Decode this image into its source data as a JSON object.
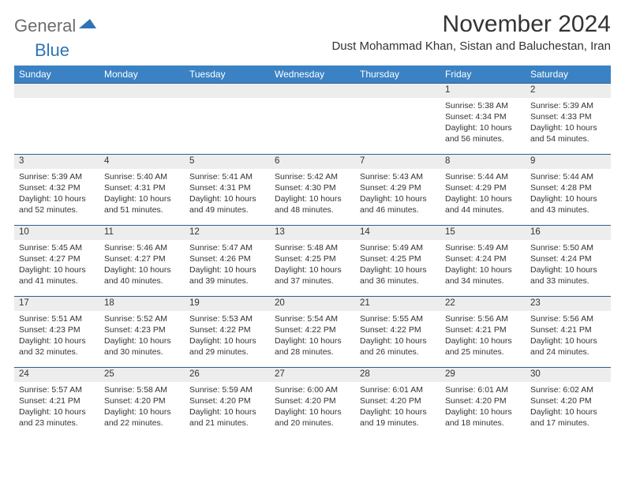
{
  "brand": {
    "part1": "General",
    "part2": "Blue"
  },
  "title": "November 2024",
  "location": "Dust Mohammad Khan, Sistan and Baluchestan, Iran",
  "colors": {
    "header_bg": "#3b82c4",
    "daynum_bg": "#ededed",
    "row_border": "#2f5f8f",
    "brand_gray": "#6d6d6d",
    "brand_blue": "#2f74b5",
    "text": "#333333",
    "page_bg": "#ffffff"
  },
  "weekdays": [
    "Sunday",
    "Monday",
    "Tuesday",
    "Wednesday",
    "Thursday",
    "Friday",
    "Saturday"
  ],
  "weeks": [
    [
      null,
      null,
      null,
      null,
      null,
      {
        "n": "1",
        "sr": "5:38 AM",
        "ss": "4:34 PM",
        "dl": "10 hours and 56 minutes."
      },
      {
        "n": "2",
        "sr": "5:39 AM",
        "ss": "4:33 PM",
        "dl": "10 hours and 54 minutes."
      }
    ],
    [
      {
        "n": "3",
        "sr": "5:39 AM",
        "ss": "4:32 PM",
        "dl": "10 hours and 52 minutes."
      },
      {
        "n": "4",
        "sr": "5:40 AM",
        "ss": "4:31 PM",
        "dl": "10 hours and 51 minutes."
      },
      {
        "n": "5",
        "sr": "5:41 AM",
        "ss": "4:31 PM",
        "dl": "10 hours and 49 minutes."
      },
      {
        "n": "6",
        "sr": "5:42 AM",
        "ss": "4:30 PM",
        "dl": "10 hours and 48 minutes."
      },
      {
        "n": "7",
        "sr": "5:43 AM",
        "ss": "4:29 PM",
        "dl": "10 hours and 46 minutes."
      },
      {
        "n": "8",
        "sr": "5:44 AM",
        "ss": "4:29 PM",
        "dl": "10 hours and 44 minutes."
      },
      {
        "n": "9",
        "sr": "5:44 AM",
        "ss": "4:28 PM",
        "dl": "10 hours and 43 minutes."
      }
    ],
    [
      {
        "n": "10",
        "sr": "5:45 AM",
        "ss": "4:27 PM",
        "dl": "10 hours and 41 minutes."
      },
      {
        "n": "11",
        "sr": "5:46 AM",
        "ss": "4:27 PM",
        "dl": "10 hours and 40 minutes."
      },
      {
        "n": "12",
        "sr": "5:47 AM",
        "ss": "4:26 PM",
        "dl": "10 hours and 39 minutes."
      },
      {
        "n": "13",
        "sr": "5:48 AM",
        "ss": "4:25 PM",
        "dl": "10 hours and 37 minutes."
      },
      {
        "n": "14",
        "sr": "5:49 AM",
        "ss": "4:25 PM",
        "dl": "10 hours and 36 minutes."
      },
      {
        "n": "15",
        "sr": "5:49 AM",
        "ss": "4:24 PM",
        "dl": "10 hours and 34 minutes."
      },
      {
        "n": "16",
        "sr": "5:50 AM",
        "ss": "4:24 PM",
        "dl": "10 hours and 33 minutes."
      }
    ],
    [
      {
        "n": "17",
        "sr": "5:51 AM",
        "ss": "4:23 PM",
        "dl": "10 hours and 32 minutes."
      },
      {
        "n": "18",
        "sr": "5:52 AM",
        "ss": "4:23 PM",
        "dl": "10 hours and 30 minutes."
      },
      {
        "n": "19",
        "sr": "5:53 AM",
        "ss": "4:22 PM",
        "dl": "10 hours and 29 minutes."
      },
      {
        "n": "20",
        "sr": "5:54 AM",
        "ss": "4:22 PM",
        "dl": "10 hours and 28 minutes."
      },
      {
        "n": "21",
        "sr": "5:55 AM",
        "ss": "4:22 PM",
        "dl": "10 hours and 26 minutes."
      },
      {
        "n": "22",
        "sr": "5:56 AM",
        "ss": "4:21 PM",
        "dl": "10 hours and 25 minutes."
      },
      {
        "n": "23",
        "sr": "5:56 AM",
        "ss": "4:21 PM",
        "dl": "10 hours and 24 minutes."
      }
    ],
    [
      {
        "n": "24",
        "sr": "5:57 AM",
        "ss": "4:21 PM",
        "dl": "10 hours and 23 minutes."
      },
      {
        "n": "25",
        "sr": "5:58 AM",
        "ss": "4:20 PM",
        "dl": "10 hours and 22 minutes."
      },
      {
        "n": "26",
        "sr": "5:59 AM",
        "ss": "4:20 PM",
        "dl": "10 hours and 21 minutes."
      },
      {
        "n": "27",
        "sr": "6:00 AM",
        "ss": "4:20 PM",
        "dl": "10 hours and 20 minutes."
      },
      {
        "n": "28",
        "sr": "6:01 AM",
        "ss": "4:20 PM",
        "dl": "10 hours and 19 minutes."
      },
      {
        "n": "29",
        "sr": "6:01 AM",
        "ss": "4:20 PM",
        "dl": "10 hours and 18 minutes."
      },
      {
        "n": "30",
        "sr": "6:02 AM",
        "ss": "4:20 PM",
        "dl": "10 hours and 17 minutes."
      }
    ]
  ],
  "labels": {
    "sunrise": "Sunrise: ",
    "sunset": "Sunset: ",
    "daylight": "Daylight: "
  }
}
